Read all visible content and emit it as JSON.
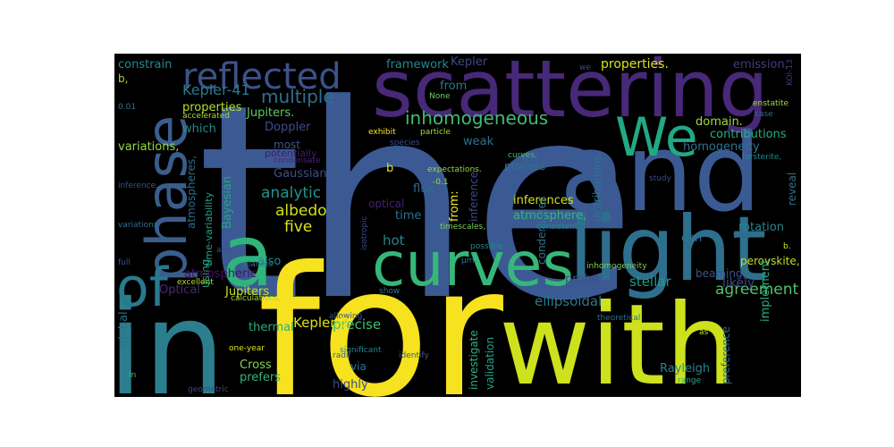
{
  "word_cloud": {
    "background": "#000000",
    "words": [
      {
        "text": "the",
        "color": "#3b5a93"
      },
      {
        "text": "for",
        "color": "#f6e21e"
      },
      {
        "text": "scattering",
        "color": "#482878"
      },
      {
        "text": "and",
        "color": "#3b5a93"
      },
      {
        "text": "with",
        "color": "#cde11d"
      },
      {
        "text": "in",
        "color": "#2c7e8e"
      },
      {
        "text": "light",
        "color": "#2e6f8e"
      },
      {
        "text": "curves",
        "color": "#35b779"
      },
      {
        "text": "phase",
        "color": "#3a5e8c"
      },
      {
        "text": "reflected",
        "color": "#3b528b"
      },
      {
        "text": "We",
        "color": "#22a884"
      },
      {
        "text": "a",
        "color": "#2fb47c"
      },
      {
        "text": "of",
        "color": "#297a8e"
      },
      {
        "text": "Kepler-41",
        "color": "#2a788e"
      },
      {
        "text": "multiple",
        "color": "#2d708e"
      },
      {
        "text": "inhomogeneous",
        "color": "#3fbc73"
      },
      {
        "text": "constrain",
        "color": "#23898e"
      },
      {
        "text": "framework",
        "color": "#24868e"
      },
      {
        "text": "Kepler",
        "color": "#414487"
      },
      {
        "text": "properties.",
        "color": "#d8e219"
      },
      {
        "text": "emission,",
        "color": "#443983"
      },
      {
        "text": "b,",
        "color": "#a5db36"
      },
      {
        "text": "from",
        "color": "#2a778e"
      },
      {
        "text": "None",
        "color": "#6ece58"
      },
      {
        "text": "we",
        "color": "#3e4989"
      },
      {
        "text": "KOI-13",
        "color": "#46337f"
      },
      {
        "text": "Jupiters.",
        "color": "#5ec962"
      },
      {
        "text": "properties",
        "color": "#b5de2b"
      },
      {
        "text": "accelerated",
        "color": "#a8db34"
      },
      {
        "text": "species",
        "color": "#3e4a89"
      },
      {
        "text": "enstatite",
        "color": "#a2da37"
      },
      {
        "text": "case",
        "color": "#2e6e8e"
      },
      {
        "text": "domain.",
        "color": "#a2da37"
      },
      {
        "text": "which",
        "color": "#24878e"
      },
      {
        "text": "Doppler",
        "color": "#3d4d8a"
      },
      {
        "text": "exhibit",
        "color": "#fde725"
      },
      {
        "text": "particle",
        "color": "#a0da39"
      },
      {
        "text": "contributions",
        "color": "#27ad81"
      },
      {
        "text": "variations,",
        "color": "#95d840"
      },
      {
        "text": "homogeneity",
        "color": "#2d718e"
      },
      {
        "text": "most",
        "color": "#3b528b"
      },
      {
        "text": "potentially",
        "color": "#48186a"
      },
      {
        "text": "weak",
        "color": "#2c728e"
      },
      {
        "text": "curves,",
        "color": "#3dbc74"
      },
      {
        "text": "process",
        "color": "#2c718e"
      },
      {
        "text": "forsterite,",
        "color": "#23888e"
      },
      {
        "text": "atmospheres,",
        "color": "#2e6d8e"
      },
      {
        "text": "Gaussian",
        "color": "#3c4f8a"
      },
      {
        "text": "condensate",
        "color": "#482576"
      },
      {
        "text": "b",
        "color": "#d0e11c"
      },
      {
        "text": "expectations.",
        "color": "#90d743"
      },
      {
        "text": "-0.1",
        "color": "#a0da39"
      },
      {
        "text": "distributions",
        "color": "#2b748e"
      },
      {
        "text": "study",
        "color": "#3e4989"
      },
      {
        "text": "reveal",
        "color": "#2d708e"
      },
      {
        "text": "analytic",
        "color": "#1f958b"
      },
      {
        "text": "Bayesian",
        "color": "#22a785"
      },
      {
        "text": "flux",
        "color": "#2e6e8e"
      },
      {
        "text": "from:",
        "color": "#eae51a"
      },
      {
        "text": "inferences",
        "color": "#d2e21b"
      },
      {
        "text": "inference",
        "color": "#3e4989"
      },
      {
        "text": "time-variability",
        "color": "#1fa287"
      },
      {
        "text": "albedo",
        "color": "#d0e11c"
      },
      {
        "text": "optical",
        "color": "#482173"
      },
      {
        "text": "time",
        "color": "#2e6e8e"
      },
      {
        "text": "atmosphere,",
        "color": "#35b779"
      },
      {
        "text": "five",
        "color": "#dde318"
      },
      {
        "text": "condensates",
        "color": "#2c738e"
      },
      {
        "text": "timescales,",
        "color": "#7ad151"
      },
      {
        "text": "consistent",
        "color": "#24878e"
      },
      {
        "text": "rotation",
        "color": "#25848e"
      },
      {
        "text": "hot",
        "color": "#26818e"
      },
      {
        "text": "variations",
        "color": "#2d708e"
      },
      {
        "text": "inference.",
        "color": "#3b528b"
      },
      {
        "text": "0.01",
        "color": "#2b758e"
      },
      {
        "text": "isotropic",
        "color": "#3e4a89"
      },
      {
        "text": "can",
        "color": "#2c728e"
      },
      {
        "text": "that",
        "color": "#31688e"
      },
      {
        "text": "using",
        "color": "#1fa188"
      },
      {
        "text": "are",
        "color": "#3b528b"
      },
      {
        "text": "possible",
        "color": "#23888e"
      },
      {
        "text": "b.",
        "color": "#cde11d"
      },
      {
        "text": "full",
        "color": "#3b528b"
      },
      {
        "text": "also",
        "color": "#23898e"
      },
      {
        "text": "beaming,",
        "color": "#3a548c"
      },
      {
        "text": "μm.",
        "color": "#2e6e8e"
      },
      {
        "text": "perovskite,",
        "color": "#c2df23"
      },
      {
        "text": "planets",
        "color": "#2e6f8e"
      },
      {
        "text": "inhomogeneity",
        "color": "#7ad151"
      },
      {
        "text": "agreement",
        "color": "#50c46a"
      },
      {
        "text": "atmospheric",
        "color": "#471063"
      },
      {
        "text": "probe",
        "color": "#3c4f8a"
      },
      {
        "text": "stellar",
        "color": "#1e9b8a"
      },
      {
        "text": "likely",
        "color": "#404688"
      },
      {
        "text": "excellent",
        "color": "#b2dd2d"
      },
      {
        "text": "Optical",
        "color": "#482979"
      },
      {
        "text": "Jupiters",
        "color": "#cde11d"
      },
      {
        "text": "global",
        "color": "#2c738e"
      },
      {
        "text": "calculations,",
        "color": "#a5db36"
      },
      {
        "text": "allowing",
        "color": "#3b528b"
      },
      {
        "text": "ellipsoidal",
        "color": "#2a768e"
      },
      {
        "text": "precise",
        "color": "#3fbc73"
      },
      {
        "text": "thermal",
        "color": "#29af7f"
      },
      {
        "text": "Kepler-7",
        "color": "#dde318"
      },
      {
        "text": "theoretical",
        "color": "#2e6e8e"
      },
      {
        "text": "as",
        "color": "#c5e021"
      },
      {
        "text": "implement",
        "color": "#27ad81"
      },
      {
        "text": "one-year",
        "color": "#e2e418"
      },
      {
        "text": "significant",
        "color": "#24868e"
      },
      {
        "text": "radii",
        "color": "#33628d"
      },
      {
        "text": "identify",
        "color": "#38598c"
      },
      {
        "text": "preference",
        "color": "#2e6e8e"
      },
      {
        "text": "investigate",
        "color": "#2db27d"
      },
      {
        "text": "validation",
        "color": "#20a386"
      },
      {
        "text": "Rayleigh",
        "color": "#24868e"
      },
      {
        "text": "range",
        "color": "#22a785"
      },
      {
        "text": "Cross",
        "color": "#81d34d"
      },
      {
        "text": "via",
        "color": "#2b758e"
      },
      {
        "text": "In",
        "color": "#3dbc74"
      },
      {
        "text": "prefers",
        "color": "#32b67a"
      },
      {
        "text": "highly",
        "color": "#3e4a89"
      },
      {
        "text": "geometric",
        "color": "#404588"
      },
      {
        "text": "show",
        "color": "#2d718e"
      }
    ]
  }
}
